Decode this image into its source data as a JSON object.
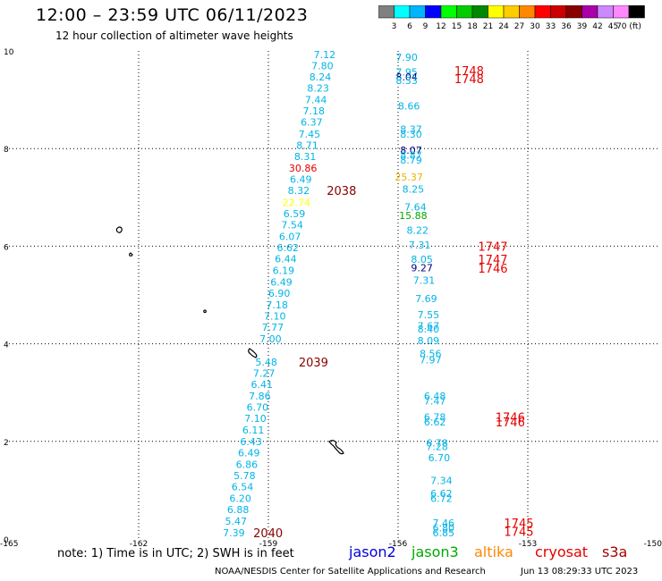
{
  "title": "12:00 – 23:59 UTC 06/11/2023",
  "subtitle": "12 hour collection of altimeter wave heights",
  "colorbar": {
    "ticks": [
      "3",
      "6",
      "9",
      "12",
      "15",
      "18",
      "21",
      "24",
      "27",
      "30",
      "33",
      "36",
      "39",
      "42",
      "45",
      "70 (ft)"
    ],
    "colors": [
      "#808080",
      "#00ffff",
      "#00b4ff",
      "#0000ff",
      "#00ff00",
      "#00cc00",
      "#008800",
      "#ffff00",
      "#ffcc00",
      "#ff8800",
      "#ff0000",
      "#cc0000",
      "#880000",
      "#aa00aa",
      "#cc88ff",
      "#ff88ff",
      "#000000"
    ]
  },
  "axes": {
    "x_ticks": [
      "-165",
      "-162",
      "-159",
      "-156",
      "-153",
      "-150"
    ],
    "y_ticks": [
      "0",
      "2",
      "4",
      "6",
      "8",
      "10"
    ],
    "lon_range": [
      -165,
      -150
    ],
    "lat_range": [
      0,
      10
    ]
  },
  "colors": {
    "cyan": "#00b4e6",
    "navy": "#000080",
    "green": "#00aa00",
    "gold": "#e6b400",
    "yellow": "#ffff00",
    "red": "#e60000",
    "dkred": "#aa0000",
    "maroon": "#880000"
  },
  "track1": [
    {
      "v": "7.12",
      "lon": -157.7,
      "lat": 9.93,
      "c": "cyan"
    },
    {
      "v": "7.80",
      "lon": -157.75,
      "lat": 9.7,
      "c": "cyan"
    },
    {
      "v": "8.24",
      "lon": -157.8,
      "lat": 9.47,
      "c": "cyan"
    },
    {
      "v": "8.23",
      "lon": -157.85,
      "lat": 9.24,
      "c": "cyan"
    },
    {
      "v": "7.44",
      "lon": -157.9,
      "lat": 9.0,
      "c": "cyan"
    },
    {
      "v": "7.18",
      "lon": -157.95,
      "lat": 8.77,
      "c": "cyan"
    },
    {
      "v": "6.37",
      "lon": -158.0,
      "lat": 8.54,
      "c": "cyan"
    },
    {
      "v": "7.45",
      "lon": -158.05,
      "lat": 8.3,
      "c": "cyan"
    },
    {
      "v": "8.71",
      "lon": -158.1,
      "lat": 8.07,
      "c": "cyan"
    },
    {
      "v": "8.31",
      "lon": -158.15,
      "lat": 7.84,
      "c": "cyan"
    },
    {
      "v": "30.86",
      "lon": -158.2,
      "lat": 7.6,
      "c": "red"
    },
    {
      "v": "6.49",
      "lon": -158.25,
      "lat": 7.37,
      "c": "cyan"
    },
    {
      "v": "8.32",
      "lon": -158.3,
      "lat": 7.14,
      "c": "cyan"
    },
    {
      "v": "22.74",
      "lon": -158.35,
      "lat": 6.9,
      "c": "yellow"
    },
    {
      "v": "6.59",
      "lon": -158.4,
      "lat": 6.67,
      "c": "cyan"
    },
    {
      "v": "7.54",
      "lon": -158.45,
      "lat": 6.44,
      "c": "cyan"
    },
    {
      "v": "6.07",
      "lon": -158.5,
      "lat": 6.2,
      "c": "cyan"
    },
    {
      "v": "6.62",
      "lon": -158.55,
      "lat": 5.97,
      "c": "cyan"
    },
    {
      "v": "6.44",
      "lon": -158.6,
      "lat": 5.74,
      "c": "cyan"
    },
    {
      "v": "6.19",
      "lon": -158.65,
      "lat": 5.5,
      "c": "cyan"
    },
    {
      "v": "6.49",
      "lon": -158.7,
      "lat": 5.27,
      "c": "cyan"
    },
    {
      "v": "6.90",
      "lon": -158.75,
      "lat": 5.04,
      "c": "cyan"
    },
    {
      "v": "7.18",
      "lon": -158.8,
      "lat": 4.8,
      "c": "cyan"
    },
    {
      "v": "7.10",
      "lon": -158.85,
      "lat": 4.57,
      "c": "cyan"
    },
    {
      "v": "7.77",
      "lon": -158.9,
      "lat": 4.34,
      "c": "cyan"
    },
    {
      "v": "7.00",
      "lon": -158.95,
      "lat": 4.1,
      "c": "cyan"
    },
    {
      "v": "5.48",
      "lon": -159.05,
      "lat": 3.63,
      "c": "cyan"
    },
    {
      "v": "7.27",
      "lon": -159.1,
      "lat": 3.4,
      "c": "cyan"
    },
    {
      "v": "6.41",
      "lon": -159.15,
      "lat": 3.17,
      "c": "cyan"
    },
    {
      "v": "7.86",
      "lon": -159.2,
      "lat": 2.93,
      "c": "cyan"
    },
    {
      "v": "6.70",
      "lon": -159.25,
      "lat": 2.7,
      "c": "cyan"
    },
    {
      "v": "7.10",
      "lon": -159.3,
      "lat": 2.47,
      "c": "cyan"
    },
    {
      "v": "6.11",
      "lon": -159.35,
      "lat": 2.23,
      "c": "cyan"
    },
    {
      "v": "6.43",
      "lon": -159.4,
      "lat": 2.0,
      "c": "cyan"
    },
    {
      "v": "6.49",
      "lon": -159.45,
      "lat": 1.77,
      "c": "cyan"
    },
    {
      "v": "6.86",
      "lon": -159.5,
      "lat": 1.53,
      "c": "cyan"
    },
    {
      "v": "5.78",
      "lon": -159.55,
      "lat": 1.3,
      "c": "cyan"
    },
    {
      "v": "6.54",
      "lon": -159.6,
      "lat": 1.07,
      "c": "cyan"
    },
    {
      "v": "6.20",
      "lon": -159.65,
      "lat": 0.83,
      "c": "cyan"
    },
    {
      "v": "6.88",
      "lon": -159.7,
      "lat": 0.6,
      "c": "cyan"
    },
    {
      "v": "5.47",
      "lon": -159.75,
      "lat": 0.37,
      "c": "cyan"
    },
    {
      "v": "7.39",
      "lon": -159.8,
      "lat": 0.13,
      "c": "cyan"
    }
  ],
  "track2": [
    {
      "v": "7.90",
      "lon": -155.8,
      "lat": 9.87,
      "c": "cyan"
    },
    {
      "v": "7.95",
      "lon": -155.8,
      "lat": 9.57,
      "c": "cyan"
    },
    {
      "v": "8.04",
      "lon": -155.8,
      "lat": 9.47,
      "c": "navy"
    },
    {
      "v": "8.33",
      "lon": -155.8,
      "lat": 9.4,
      "c": "cyan"
    },
    {
      "v": "8.66",
      "lon": -155.75,
      "lat": 8.87,
      "c": "cyan"
    },
    {
      "v": "8.37",
      "lon": -155.7,
      "lat": 8.4,
      "c": "cyan"
    },
    {
      "v": "8.30",
      "lon": -155.7,
      "lat": 8.3,
      "c": "cyan"
    },
    {
      "v": "8.07",
      "lon": -155.7,
      "lat": 7.97,
      "c": "navy"
    },
    {
      "v": "8.87",
      "lon": -155.7,
      "lat": 7.87,
      "c": "cyan"
    },
    {
      "v": "8.79",
      "lon": -155.7,
      "lat": 7.77,
      "c": "cyan"
    },
    {
      "v": "25.37",
      "lon": -155.75,
      "lat": 7.42,
      "c": "gold"
    },
    {
      "v": "8.25",
      "lon": -155.65,
      "lat": 7.17,
      "c": "cyan"
    },
    {
      "v": "7.64",
      "lon": -155.6,
      "lat": 6.8,
      "c": "cyan"
    },
    {
      "v": "15.88",
      "lon": -155.65,
      "lat": 6.63,
      "c": "green"
    },
    {
      "v": "8.22",
      "lon": -155.55,
      "lat": 6.33,
      "c": "cyan"
    },
    {
      "v": "7.31",
      "lon": -155.5,
      "lat": 6.03,
      "c": "cyan"
    },
    {
      "v": "8.05",
      "lon": -155.45,
      "lat": 5.73,
      "c": "cyan"
    },
    {
      "v": "9.27",
      "lon": -155.45,
      "lat": 5.56,
      "c": "navy"
    },
    {
      "v": "7.31",
      "lon": -155.4,
      "lat": 5.3,
      "c": "cyan"
    },
    {
      "v": "7.69",
      "lon": -155.35,
      "lat": 4.93,
      "c": "cyan"
    },
    {
      "v": "7.55",
      "lon": -155.3,
      "lat": 4.6,
      "c": "cyan"
    },
    {
      "v": "7.67",
      "lon": -155.3,
      "lat": 4.37,
      "c": "cyan"
    },
    {
      "v": "8.40",
      "lon": -155.3,
      "lat": 4.3,
      "c": "cyan"
    },
    {
      "v": "8.09",
      "lon": -155.3,
      "lat": 4.07,
      "c": "cyan"
    },
    {
      "v": "8.56",
      "lon": -155.25,
      "lat": 3.8,
      "c": "cyan"
    },
    {
      "v": "7.97",
      "lon": -155.25,
      "lat": 3.67,
      "c": "cyan"
    },
    {
      "v": "6.48",
      "lon": -155.15,
      "lat": 2.93,
      "c": "cyan"
    },
    {
      "v": "7.47",
      "lon": -155.15,
      "lat": 2.83,
      "c": "cyan"
    },
    {
      "v": "6.78",
      "lon": -155.15,
      "lat": 2.5,
      "c": "cyan"
    },
    {
      "v": "6.62",
      "lon": -155.15,
      "lat": 2.4,
      "c": "cyan"
    },
    {
      "v": "6.78",
      "lon": -155.1,
      "lat": 1.97,
      "c": "cyan"
    },
    {
      "v": "7.28",
      "lon": -155.1,
      "lat": 1.9,
      "c": "cyan"
    },
    {
      "v": "6.70",
      "lon": -155.05,
      "lat": 1.67,
      "c": "cyan"
    },
    {
      "v": "7.34",
      "lon": -155.0,
      "lat": 1.2,
      "c": "cyan"
    },
    {
      "v": "6.62",
      "lon": -155.0,
      "lat": 0.93,
      "c": "cyan"
    },
    {
      "v": "6.72",
      "lon": -155.0,
      "lat": 0.83,
      "c": "cyan"
    },
    {
      "v": "7.46",
      "lon": -154.95,
      "lat": 0.33,
      "c": "cyan"
    },
    {
      "v": "6.80",
      "lon": -154.95,
      "lat": 0.23,
      "c": "cyan"
    },
    {
      "v": "6.85",
      "lon": -154.95,
      "lat": 0.13,
      "c": "cyan"
    }
  ],
  "times": [
    {
      "t": "1748",
      "lon": -154.7,
      "lat": 9.6,
      "c": "red"
    },
    {
      "t": "1748",
      "lon": -154.7,
      "lat": 9.43,
      "c": "red"
    },
    {
      "t": "2038",
      "lon": -157.65,
      "lat": 7.14,
      "c": "maroon"
    },
    {
      "t": "1747",
      "lon": -154.15,
      "lat": 6.0,
      "c": "red"
    },
    {
      "t": "1747",
      "lon": -154.15,
      "lat": 5.73,
      "c": "red"
    },
    {
      "t": "1746",
      "lon": -154.15,
      "lat": 5.55,
      "c": "red"
    },
    {
      "t": "2039",
      "lon": -158.3,
      "lat": 3.63,
      "c": "maroon"
    },
    {
      "t": "1746",
      "lon": -153.75,
      "lat": 2.5,
      "c": "red"
    },
    {
      "t": "1746",
      "lon": -153.75,
      "lat": 2.4,
      "c": "red"
    },
    {
      "t": "2040",
      "lon": -159.35,
      "lat": 0.13,
      "c": "maroon"
    },
    {
      "t": "1745",
      "lon": -153.55,
      "lat": 0.33,
      "c": "red"
    },
    {
      "t": "1745",
      "lon": -153.55,
      "lat": 0.16,
      "c": "red"
    }
  ],
  "footer": {
    "note": "note:  1) Time is in UTC; 2) SWH is in feet",
    "satellites": [
      {
        "name": "jason2",
        "color": "#0000dd"
      },
      {
        "name": "jason3",
        "color": "#00aa00"
      },
      {
        "name": "altika",
        "color": "#ff8800"
      },
      {
        "name": "cryosat",
        "color": "#e60000"
      },
      {
        "name": "s3a",
        "color": "#aa0000"
      }
    ],
    "credit": "NOAA/NESDIS Center for Satellite Applications and Research",
    "stamp": "Jun 13 08:29:33 UTC 2023"
  }
}
